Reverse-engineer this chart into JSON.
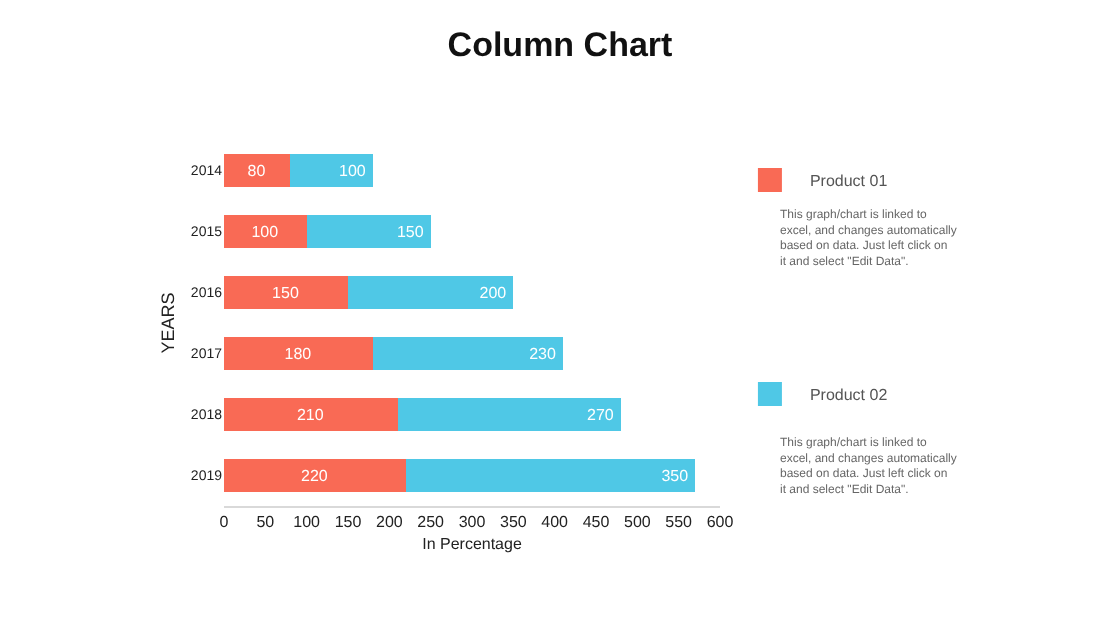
{
  "chart_data": {
    "type": "bar",
    "title": "Column Chart",
    "orientation": "horizontal",
    "stacked": true,
    "categories": [
      "2014",
      "2015",
      "2016",
      "2017",
      "2018",
      "2019"
    ],
    "series": [
      {
        "name": "Product 01",
        "color": "#f96a55",
        "values": [
          80,
          100,
          150,
          180,
          210,
          220
        ]
      },
      {
        "name": "Product 02",
        "color": "#4fc8e6",
        "values": [
          100,
          150,
          200,
          230,
          270,
          350
        ]
      }
    ],
    "xlim": [
      0,
      600
    ],
    "xticks": [
      0,
      50,
      100,
      150,
      200,
      250,
      300,
      350,
      400,
      450,
      500,
      550,
      600
    ],
    "xlabel": "In Percentage",
    "ylabel": "YEARS",
    "data_labels": true,
    "legend": "right",
    "annotations": [
      "This graph/chart is linked to excel, and changes automatically based on data. Just left click on it and select \"Edit Data\".",
      "This graph/chart is linked to excel, and changes automatically based on data. Just left click on it and select \"Edit Data\"."
    ]
  }
}
